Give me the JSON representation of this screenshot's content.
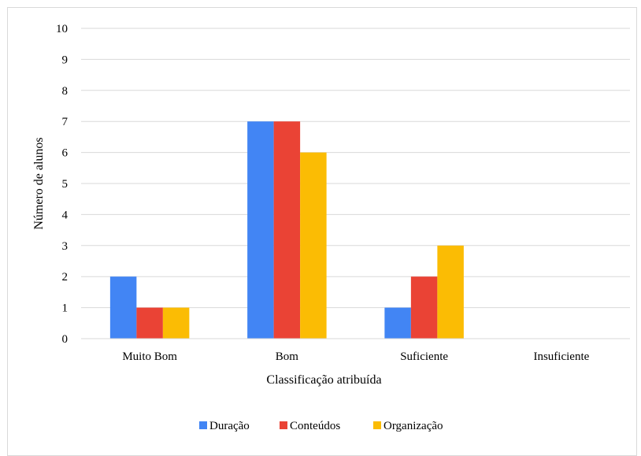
{
  "chart_data": {
    "type": "bar",
    "title": "",
    "xlabel": "Classificação atribuída",
    "ylabel": "Número de alunos",
    "ylim": [
      0,
      10
    ],
    "yticks": [
      0,
      1,
      2,
      3,
      4,
      5,
      6,
      7,
      8,
      9,
      10
    ],
    "grid": true,
    "legend_position": "bottom",
    "categories": [
      "Muito Bom",
      "Bom",
      "Suficiente",
      "Insuficiente"
    ],
    "series": [
      {
        "name": "Duração",
        "color": "#4285f4",
        "values": [
          2,
          7,
          1,
          0
        ]
      },
      {
        "name": "Conteúdos",
        "color": "#ea4335",
        "values": [
          1,
          7,
          2,
          0
        ]
      },
      {
        "name": "Organização",
        "color": "#fbbc04",
        "values": [
          1,
          6,
          3,
          0
        ]
      }
    ]
  }
}
